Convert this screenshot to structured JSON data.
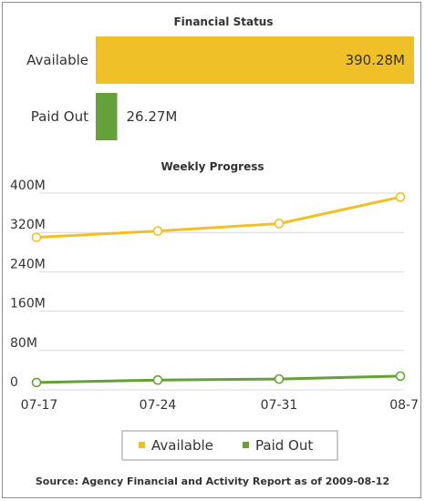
{
  "colors": {
    "available": "#f0c028",
    "paid_out": "#65a03a",
    "grid": "#d8d8d8"
  },
  "chart_data": [
    {
      "type": "bar",
      "orientation": "horizontal",
      "title": "Financial Status",
      "categories": [
        "Available",
        "Paid Out"
      ],
      "values": [
        390.28,
        26.27
      ],
      "value_labels": [
        "390.28M",
        "26.27M"
      ],
      "unit": "M"
    },
    {
      "type": "line",
      "title": "Weekly Progress",
      "x": [
        "07-17",
        "07-24",
        "07-31",
        "08-7"
      ],
      "y_ticks": [
        "0",
        "80M",
        "160M",
        "240M",
        "320M",
        "400M"
      ],
      "ylim": [
        0,
        400
      ],
      "grid": true,
      "legend": "bottom",
      "series": [
        {
          "name": "Available",
          "values": [
            310,
            323,
            338,
            392
          ]
        },
        {
          "name": "Paid Out",
          "values": [
            15,
            20,
            22,
            28
          ]
        }
      ]
    }
  ],
  "source": "Source: Agency Financial and Activity Report as of 2009-08-12"
}
